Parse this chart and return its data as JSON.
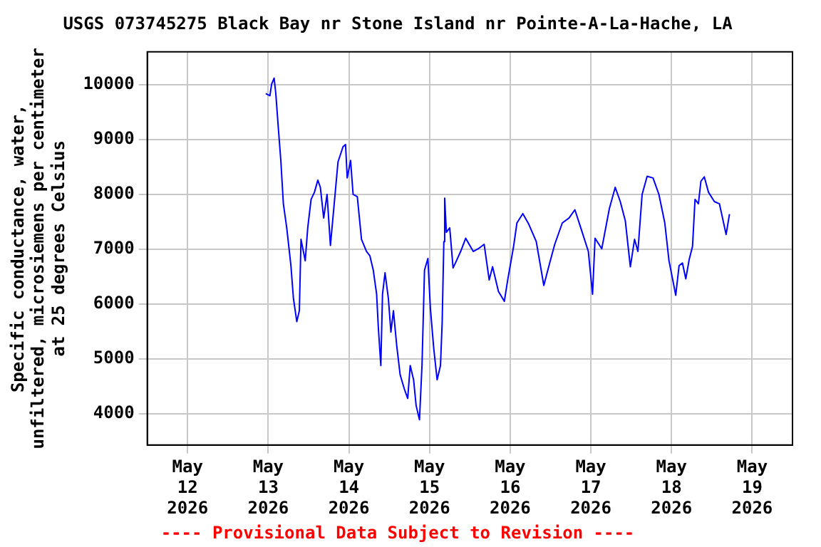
{
  "chart_data": {
    "type": "line",
    "title": "USGS 073745275 Black Bay nr Stone Island nr Pointe-A-La-Hache, LA",
    "ylabel": "Specific conductance, water,\nunfiltered, microsiemens per centimeter\nat 25 degrees Celsius",
    "annotations": [
      "---- Provisional Data Subject to Revision ----"
    ],
    "grid": true,
    "legend": false,
    "xlim": [
      "2026-05-11T12:00",
      "2026-05-19T12:00"
    ],
    "xticks": [
      {
        "value": "2026-05-12",
        "label": "May\n12\n2026"
      },
      {
        "value": "2026-05-13",
        "label": "May\n13\n2026"
      },
      {
        "value": "2026-05-14",
        "label": "May\n14\n2026"
      },
      {
        "value": "2026-05-15",
        "label": "May\n15\n2026"
      },
      {
        "value": "2026-05-16",
        "label": "May\n16\n2026"
      },
      {
        "value": "2026-05-17",
        "label": "May\n17\n2026"
      },
      {
        "value": "2026-05-18",
        "label": "May\n18\n2026"
      },
      {
        "value": "2026-05-19",
        "label": "May\n19\n2026"
      }
    ],
    "ylim": [
      3430,
      10600
    ],
    "yticks": [
      4000,
      5000,
      6000,
      7000,
      8000,
      9000,
      10000
    ],
    "x": [
      "2026-05-12T23:15",
      "2026-05-13T00:30",
      "2026-05-13T01:00",
      "2026-05-13T01:45",
      "2026-05-13T02:15",
      "2026-05-13T03:00",
      "2026-05-13T03:45",
      "2026-05-13T04:30",
      "2026-05-13T05:30",
      "2026-05-13T06:45",
      "2026-05-13T07:30",
      "2026-05-13T08:30",
      "2026-05-13T09:15",
      "2026-05-13T09:45",
      "2026-05-13T11:00",
      "2026-05-13T11:45",
      "2026-05-13T12:45",
      "2026-05-13T13:45",
      "2026-05-13T14:45",
      "2026-05-13T15:30",
      "2026-05-13T16:30",
      "2026-05-13T17:30",
      "2026-05-13T18:30",
      "2026-05-13T19:45",
      "2026-05-13T20:45",
      "2026-05-13T22:15",
      "2026-05-13T23:00",
      "2026-05-13T23:30",
      "2026-05-14T00:30",
      "2026-05-14T01:15",
      "2026-05-14T02:30",
      "2026-05-14T03:45",
      "2026-05-14T05:15",
      "2026-05-14T06:15",
      "2026-05-14T07:15",
      "2026-05-14T08:15",
      "2026-05-14T08:45",
      "2026-05-14T09:30",
      "2026-05-14T10:00",
      "2026-05-14T10:45",
      "2026-05-14T11:45",
      "2026-05-14T12:30",
      "2026-05-14T13:15",
      "2026-05-14T14:15",
      "2026-05-14T15:15",
      "2026-05-14T16:30",
      "2026-05-14T17:30",
      "2026-05-14T18:15",
      "2026-05-14T19:15",
      "2026-05-14T20:00",
      "2026-05-14T21:00",
      "2026-05-14T21:45",
      "2026-05-14T22:30",
      "2026-05-14T23:30",
      "2026-05-15T00:15",
      "2026-05-15T01:15",
      "2026-05-15T02:15",
      "2026-05-15T03:15",
      "2026-05-15T03:45",
      "2026-05-15T04:15",
      "2026-05-15T04:30",
      "2026-05-15T05:00",
      "2026-05-15T06:00",
      "2026-05-15T07:00",
      "2026-05-15T08:00",
      "2026-05-15T09:15",
      "2026-05-15T10:45",
      "2026-05-15T13:00",
      "2026-05-15T14:30",
      "2026-05-15T16:15",
      "2026-05-15T17:45",
      "2026-05-15T18:45",
      "2026-05-15T20:30",
      "2026-05-15T22:15",
      "2026-05-15T23:15",
      "2026-05-16T01:00",
      "2026-05-16T02:00",
      "2026-05-16T03:45",
      "2026-05-16T05:30",
      "2026-05-16T07:45",
      "2026-05-16T10:00",
      "2026-05-16T11:45",
      "2026-05-16T13:15",
      "2026-05-16T15:30",
      "2026-05-16T17:30",
      "2026-05-16T19:15",
      "2026-05-16T21:00",
      "2026-05-16T23:15",
      "2026-05-17T00:30",
      "2026-05-17T01:15",
      "2026-05-17T03:15",
      "2026-05-17T05:30",
      "2026-05-17T07:15",
      "2026-05-17T08:45",
      "2026-05-17T10:15",
      "2026-05-17T11:45",
      "2026-05-17T13:00",
      "2026-05-17T14:00",
      "2026-05-17T15:15",
      "2026-05-17T16:45",
      "2026-05-17T18:30",
      "2026-05-17T20:15",
      "2026-05-17T22:00",
      "2026-05-17T23:15",
      "2026-05-18T00:30",
      "2026-05-18T01:15",
      "2026-05-18T02:15",
      "2026-05-18T03:15",
      "2026-05-18T04:15",
      "2026-05-18T05:15",
      "2026-05-18T06:15",
      "2026-05-18T07:00",
      "2026-05-18T08:00",
      "2026-05-18T08:45",
      "2026-05-18T09:45",
      "2026-05-18T11:00",
      "2026-05-18T12:45",
      "2026-05-18T14:15",
      "2026-05-18T15:30",
      "2026-05-18T16:15",
      "2026-05-18T17:15"
    ],
    "series": [
      {
        "color": "#0000ff",
        "values": [
          9840,
          9800,
          10010,
          10120,
          9840,
          9210,
          8610,
          7830,
          7390,
          6700,
          6100,
          5680,
          5880,
          7180,
          6790,
          7390,
          7910,
          8040,
          8260,
          8130,
          7570,
          8000,
          7070,
          7910,
          8590,
          8870,
          8910,
          8300,
          8620,
          8000,
          7960,
          7180,
          6960,
          6880,
          6620,
          6180,
          5580,
          4880,
          6180,
          6570,
          6100,
          5490,
          5880,
          5230,
          4710,
          4450,
          4280,
          4880,
          4620,
          4150,
          3890,
          4880,
          6620,
          6830,
          5920,
          5190,
          4620,
          4880,
          5660,
          7140,
          7930,
          7310,
          7390,
          6660,
          6790,
          6960,
          7200,
          6960,
          7010,
          7090,
          6440,
          6680,
          6230,
          6050,
          6440,
          7050,
          7480,
          7650,
          7460,
          7140,
          6340,
          6750,
          7090,
          7480,
          7570,
          7720,
          7390,
          6960,
          6180,
          7200,
          7010,
          7740,
          8130,
          7870,
          7520,
          6680,
          7180,
          6960,
          8000,
          8330,
          8300,
          8000,
          7480,
          6790,
          6400,
          6160,
          6700,
          6750,
          6460,
          6810,
          7050,
          7910,
          7830,
          8240,
          8320,
          8040,
          7870,
          7830,
          7480,
          7270,
          7640
        ]
      }
    ]
  }
}
